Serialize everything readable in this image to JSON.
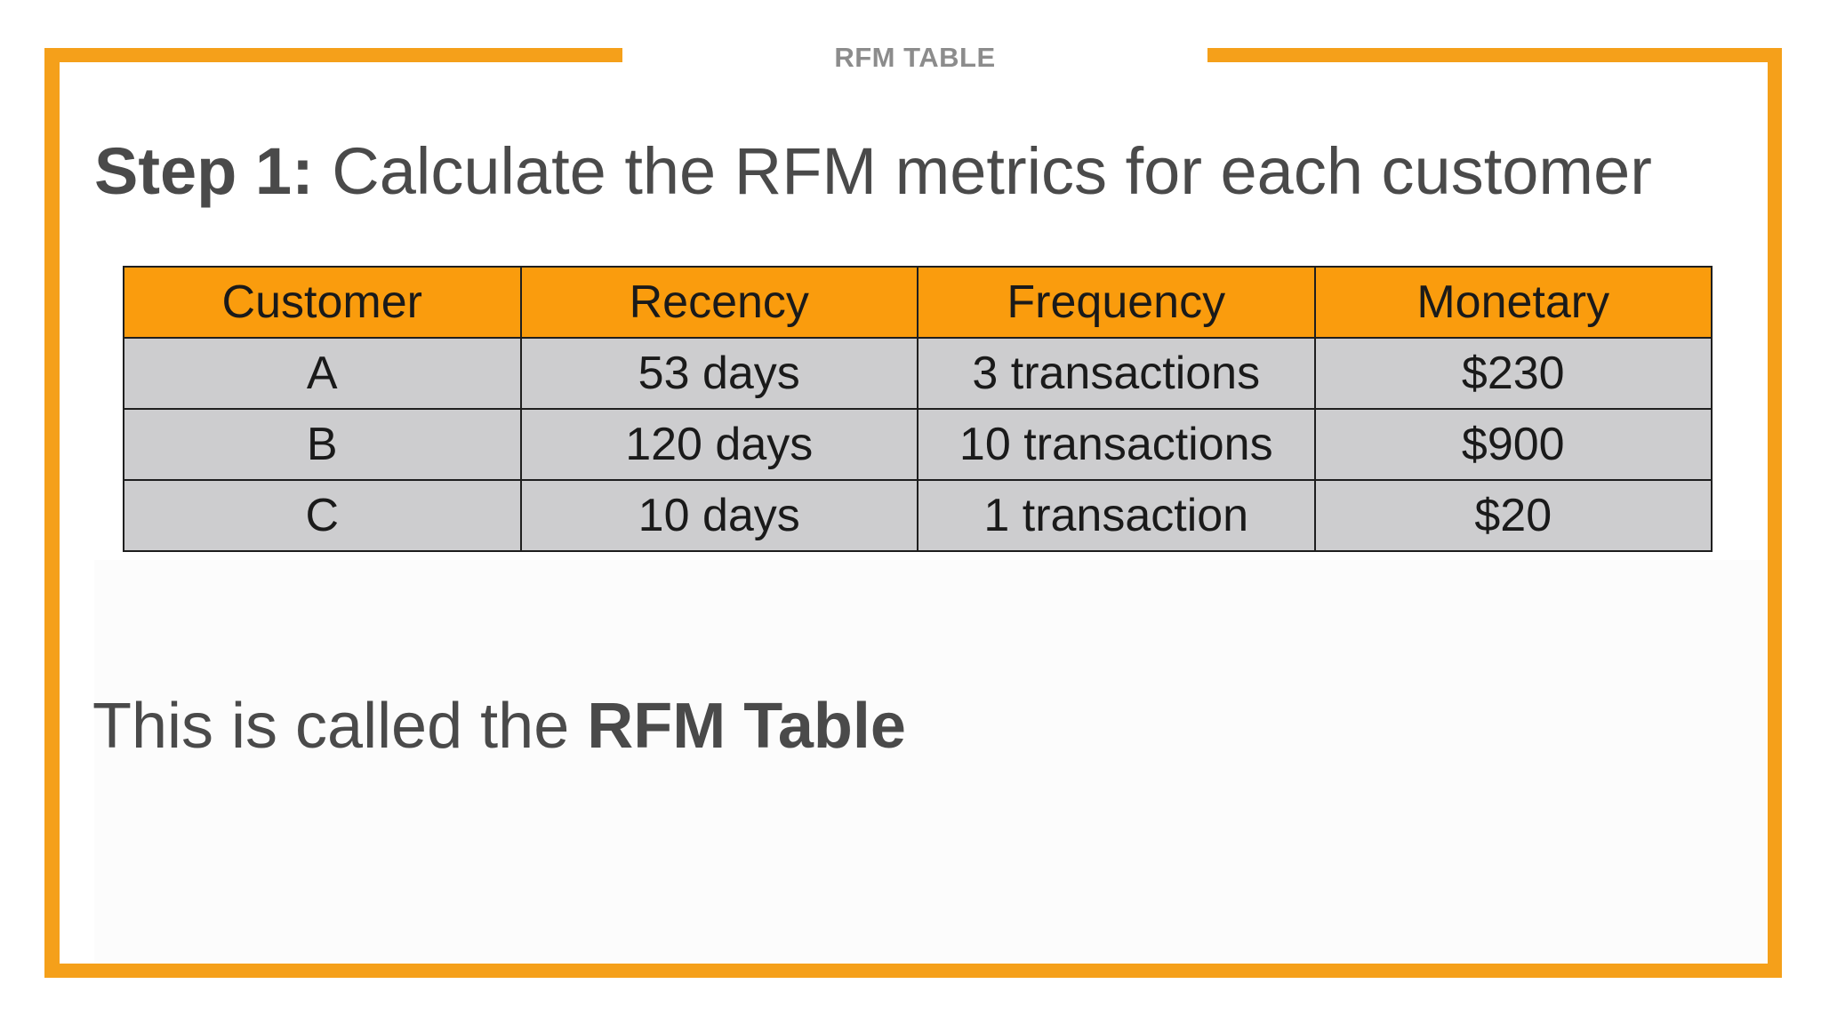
{
  "slide": {
    "label": "RFM TABLE",
    "heading_bold": "Step 1:",
    "heading_rest": " Calculate the RFM metrics for each customer",
    "footer_plain": "This is called the ",
    "footer_bold": "RFM Table",
    "accent_color": "#f5a01a"
  },
  "table": {
    "headers": [
      "Customer",
      "Recency",
      "Frequency",
      "Monetary"
    ],
    "rows": [
      [
        "A",
        "53 days",
        "3 transactions",
        "$230"
      ],
      [
        "B",
        "120 days",
        "10 transactions",
        "$900"
      ],
      [
        "C",
        "10 days",
        "1 transaction",
        "$20"
      ]
    ],
    "header_color": "#fa9c0d",
    "row_color": "#cdcdcf"
  }
}
